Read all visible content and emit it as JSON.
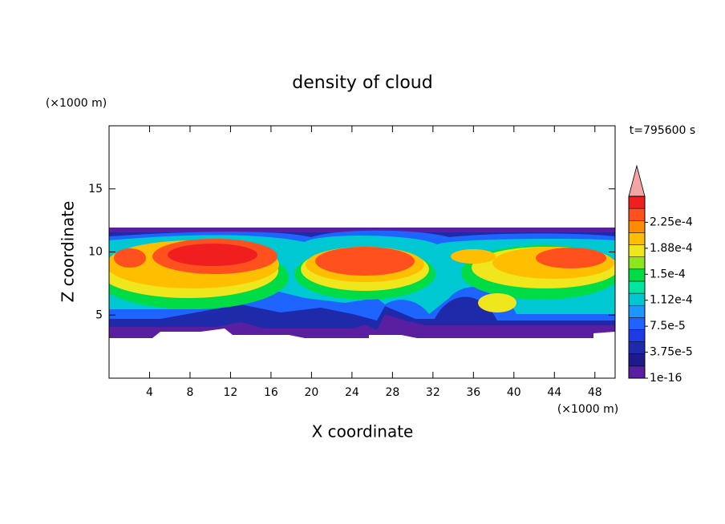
{
  "chart_data": {
    "type": "contour",
    "title": "density of cloud",
    "xlabel": "X coordinate",
    "ylabel": "Z coordinate",
    "x_unit": "(×1000 m)",
    "y_unit": "(×1000 m)",
    "time_label": "t=795600 s",
    "xlim": [
      0,
      50
    ],
    "xticks": [
      4,
      8,
      12,
      16,
      20,
      24,
      28,
      32,
      36,
      40,
      44,
      48
    ],
    "ylim": [
      0,
      20
    ],
    "yticks": [
      5,
      10,
      15
    ],
    "colorbar": {
      "clim": [
        0,
        0.0002625
      ],
      "ticks": [
        {
          "value": 1e-16,
          "label": "1e-16"
        },
        {
          "value": 3.75e-05,
          "label": "3.75e-5"
        },
        {
          "value": 7.5e-05,
          "label": "7.5e-5"
        },
        {
          "value": 0.0001125,
          "label": "1.12e-4"
        },
        {
          "value": 0.00015,
          "label": "1.5e-4"
        },
        {
          "value": 0.0001875,
          "label": "1.88e-4"
        },
        {
          "value": 0.000225,
          "label": "2.25e-4"
        }
      ],
      "colors": [
        "#5a1ea0",
        "#1e1a8c",
        "#1e2aaa",
        "#1e3ce6",
        "#1e64ff",
        "#1e96ff",
        "#00c8d2",
        "#00e6a0",
        "#00dc46",
        "#8ce61e",
        "#f0e61e",
        "#ffbe00",
        "#ff8c00",
        "#ff501e",
        "#f01e1e"
      ],
      "extend_color": "#f4a4a4"
    }
  }
}
